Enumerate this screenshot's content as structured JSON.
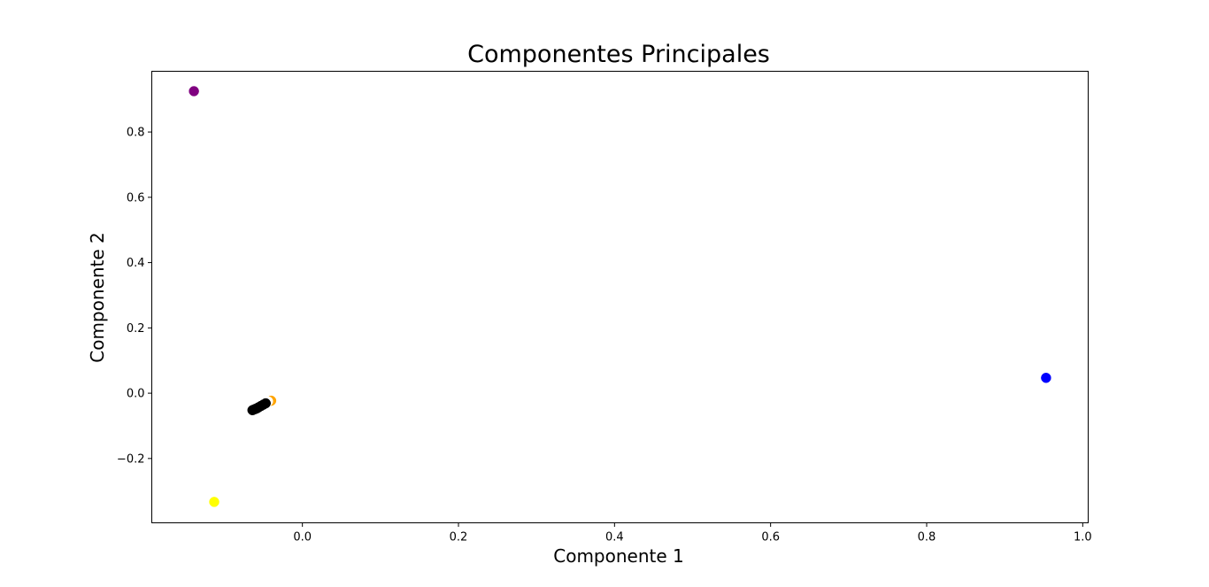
{
  "chart_data": {
    "type": "scatter",
    "title": "Componentes Principales",
    "xlabel": "Componente 1",
    "ylabel": "Componente 2",
    "xlim": [
      -0.193,
      1.007
    ],
    "ylim": [
      -0.397,
      0.986
    ],
    "grid": false,
    "x_ticks": [
      0.0,
      0.2,
      0.4,
      0.6,
      0.8,
      1.0
    ],
    "x_tick_labels": [
      "0.0",
      "0.2",
      "0.4",
      "0.6",
      "0.8",
      "1.0"
    ],
    "y_ticks": [
      -0.2,
      0.0,
      0.2,
      0.4,
      0.6,
      0.8
    ],
    "y_tick_labels": [
      "−0.2",
      "0.0",
      "0.2",
      "0.4",
      "0.6",
      "0.8"
    ],
    "points": [
      {
        "x": -0.139,
        "y": 0.925,
        "color": "#800080"
      },
      {
        "x": -0.113,
        "y": -0.333,
        "color": "#ffff00"
      },
      {
        "x": 0.953,
        "y": 0.047,
        "color": "#0000ff"
      },
      {
        "x": -0.04,
        "y": -0.023,
        "color": "#ffa500"
      },
      {
        "x": -0.044,
        "y": -0.025,
        "color": "#ffffff"
      },
      {
        "x": -0.047,
        "y": -0.031,
        "color": "#000000"
      },
      {
        "x": -0.05,
        "y": -0.035,
        "color": "#000000"
      },
      {
        "x": -0.053,
        "y": -0.039,
        "color": "#000000"
      },
      {
        "x": -0.056,
        "y": -0.043,
        "color": "#000000"
      },
      {
        "x": -0.058,
        "y": -0.046,
        "color": "#000000"
      },
      {
        "x": -0.06,
        "y": -0.048,
        "color": "#000000"
      },
      {
        "x": -0.062,
        "y": -0.05,
        "color": "#000000"
      },
      {
        "x": -0.064,
        "y": -0.052,
        "color": "#000000"
      }
    ]
  }
}
